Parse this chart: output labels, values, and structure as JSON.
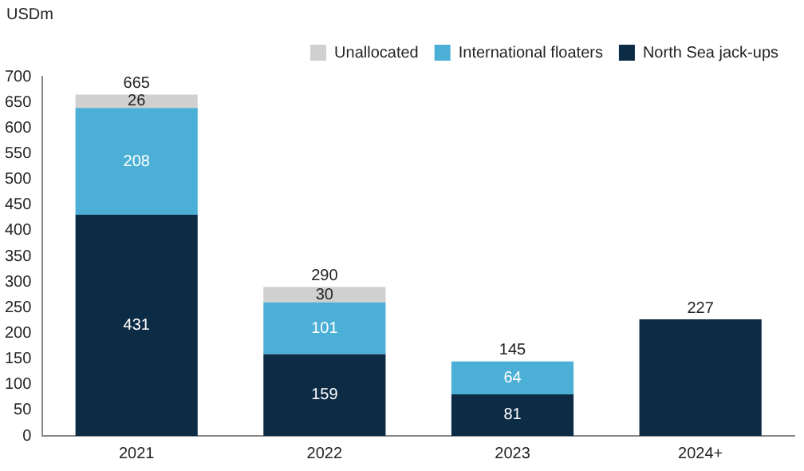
{
  "chart_data": {
    "type": "bar",
    "stacked": true,
    "ylabel": "USDm",
    "categories": [
      "2021",
      "2022",
      "2023",
      "2024+"
    ],
    "series": [
      {
        "name": "North Sea jack-ups",
        "color": "#0c2b45",
        "values": [
          431,
          159,
          81,
          227
        ],
        "value_labels": [
          "431",
          "159",
          "81",
          null
        ]
      },
      {
        "name": "International floaters",
        "color": "#4bafd6",
        "values": [
          208,
          101,
          64,
          null
        ],
        "value_labels": [
          "208",
          "101",
          "64",
          null
        ]
      },
      {
        "name": "Unallocated",
        "color": "#d0d0d0",
        "values": [
          26,
          30,
          null,
          null
        ],
        "value_labels": [
          "26",
          "30",
          null,
          null
        ]
      }
    ],
    "totals": [
      "665",
      "290",
      "145",
      "227"
    ],
    "ylim": [
      0,
      700
    ],
    "yticks": [
      0,
      50,
      100,
      150,
      200,
      250,
      300,
      350,
      400,
      450,
      500,
      550,
      600,
      650,
      700
    ],
    "grid": false,
    "legend": "top right"
  }
}
